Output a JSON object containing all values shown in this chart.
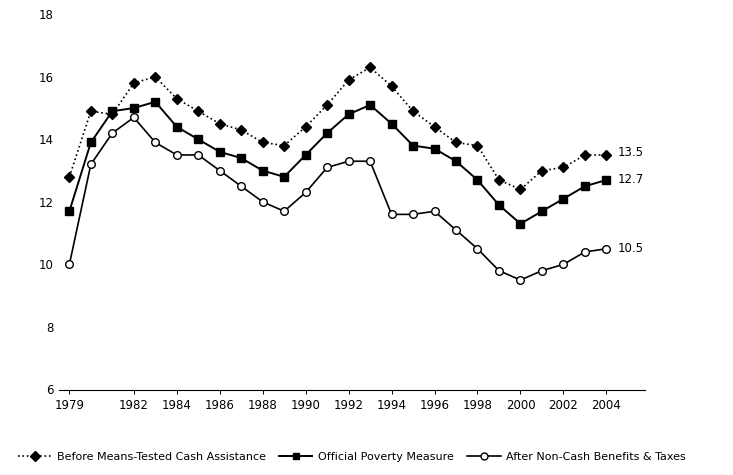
{
  "years": [
    1979,
    1980,
    1981,
    1982,
    1983,
    1984,
    1985,
    1986,
    1987,
    1988,
    1989,
    1990,
    1991,
    1992,
    1993,
    1994,
    1995,
    1996,
    1997,
    1998,
    1999,
    2000,
    2001,
    2002,
    2003,
    2004
  ],
  "before_means": [
    12.8,
    14.9,
    14.8,
    15.8,
    16.0,
    15.3,
    14.9,
    14.5,
    14.3,
    13.9,
    13.8,
    14.4,
    15.1,
    15.9,
    16.3,
    15.7,
    14.9,
    14.4,
    13.9,
    13.8,
    12.7,
    12.4,
    13.0,
    13.1,
    13.5,
    13.5
  ],
  "official_poverty": [
    11.7,
    13.9,
    14.9,
    15.0,
    15.2,
    14.4,
    14.0,
    13.6,
    13.4,
    13.0,
    12.8,
    13.5,
    14.2,
    14.8,
    15.1,
    14.5,
    13.8,
    13.7,
    13.3,
    12.7,
    11.9,
    11.3,
    11.7,
    12.1,
    12.5,
    12.7
  ],
  "after_noncash": [
    10.0,
    13.2,
    14.2,
    14.7,
    13.9,
    13.5,
    13.5,
    13.0,
    12.5,
    12.0,
    11.7,
    12.3,
    13.1,
    13.3,
    13.3,
    11.6,
    11.6,
    11.7,
    11.1,
    10.5,
    9.8,
    9.5,
    9.8,
    10.0,
    10.4,
    10.5
  ],
  "ylim": [
    6,
    18
  ],
  "yticks": [
    6,
    8,
    10,
    12,
    14,
    16,
    18
  ],
  "xticks": [
    1979,
    1982,
    1984,
    1986,
    1988,
    1990,
    1992,
    1994,
    1996,
    1998,
    2000,
    2002,
    2004
  ],
  "end_labels": {
    "before_means": "13.5",
    "official_poverty": "12.7",
    "after_noncash": "10.5"
  },
  "legend": {
    "before_means": "Before Means-Tested Cash Assistance",
    "official_poverty": "Official Poverty Measure",
    "after_noncash": "After Non-Cash Benefits & Taxes"
  },
  "line_color": "#000000",
  "bg_color": "#ffffff",
  "xlim_right": 2005.8
}
